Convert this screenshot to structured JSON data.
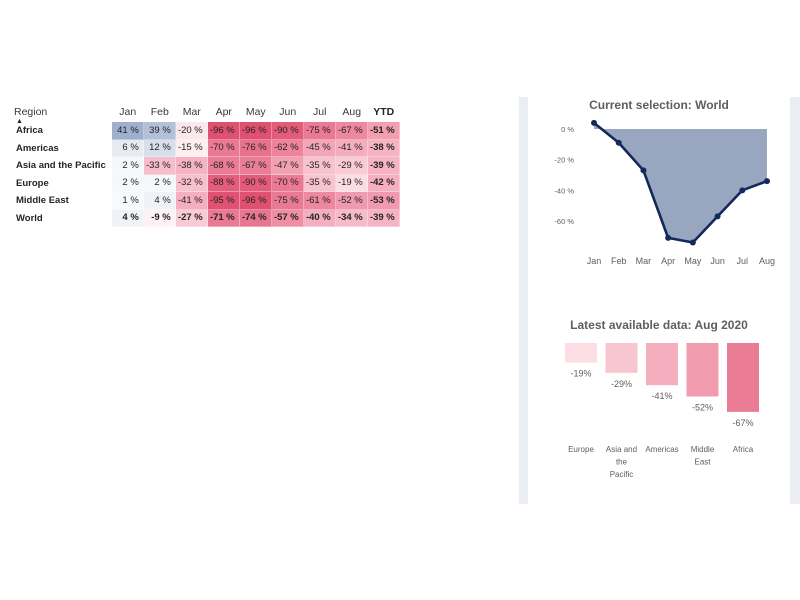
{
  "table": {
    "headers": {
      "region": "Region",
      "months": [
        "Jan",
        "Feb",
        "Mar",
        "Apr",
        "May",
        "Jun",
        "Jul",
        "Aug"
      ],
      "ytd": "YTD"
    },
    "rows": [
      {
        "region": "Africa",
        "values": [
          "41 %",
          "39 %",
          "-20 %",
          "-96 %",
          "-96 %",
          "-90 %",
          "-75 %",
          "-67 %"
        ],
        "ytd": "-51 %",
        "colors": [
          "#9fb0cc",
          "#b3c0d7",
          "#fce7ea",
          "#e05070",
          "#e05070",
          "#e45c7a",
          "#ea7a93",
          "#ee889e"
        ],
        "ytd_color": "#f29fb2"
      },
      {
        "region": "Americas",
        "values": [
          "6 %",
          "12 %",
          "-15 %",
          "-70 %",
          "-76 %",
          "-62 %",
          "-45 %",
          "-41 %"
        ],
        "ytd": "-38 %",
        "colors": [
          "#e6ebf2",
          "#d8dfea",
          "#fdeef1",
          "#ea7a93",
          "#e8728c",
          "#ed849c",
          "#f3a6b7",
          "#f4adbd"
        ],
        "ytd_color": "#f6b4c3"
      },
      {
        "region": "Asia and the Pacific",
        "values": [
          "2 %",
          "-33 %",
          "-38 %",
          "-68 %",
          "-67 %",
          "-47 %",
          "-35 %",
          "-29 %"
        ],
        "ytd": "-39 %",
        "colors": [
          "#f6f7fa",
          "#f7bdcb",
          "#f6b4c3",
          "#eb7c95",
          "#eb7e97",
          "#f2a1b3",
          "#f8c2ce",
          "#f9cbd5"
        ],
        "ytd_color": "#f6b4c3"
      },
      {
        "region": "Europe",
        "values": [
          "2 %",
          "2 %",
          "-32 %",
          "-88 %",
          "-90 %",
          "-70 %",
          "-35 %",
          "-19 %"
        ],
        "ytd": "-42 %",
        "colors": [
          "#f6f7fa",
          "#f6f7fa",
          "#f8c0cc",
          "#e45e7b",
          "#e45c7a",
          "#ea7a93",
          "#f8c2ce",
          "#fbdee4"
        ],
        "ytd_color": "#f5afbf"
      },
      {
        "region": "Middle East",
        "values": [
          "1 %",
          "4 %",
          "-41 %",
          "-95 %",
          "-96 %",
          "-75 %",
          "-61 %",
          "-52 %"
        ],
        "ytd": "-53 %",
        "colors": [
          "#f8f9fb",
          "#eff2f7",
          "#f4aebe",
          "#e15272",
          "#e05070",
          "#ea7a93",
          "#ee889f",
          "#f09ab0"
        ],
        "ytd_color": "#f09ab0"
      },
      {
        "region": "World",
        "values": [
          "4 %",
          "-9 %",
          "-27 %",
          "-71 %",
          "-74 %",
          "-57 %",
          "-40 %",
          "-34 %"
        ],
        "ytd": "-39 %",
        "colors": [
          "#eff2f7",
          "#fdf1f4",
          "#f9cbd5",
          "#ea7a93",
          "#e97690",
          "#ef8ea4",
          "#f5b0c0",
          "#f7bac8"
        ],
        "ytd_color": "#f6b4c3"
      }
    ]
  },
  "line_panel": {
    "title": "Current selection: World"
  },
  "bar_panel": {
    "title": "Latest available data: Aug 2020"
  },
  "chart_data": [
    {
      "type": "area",
      "title": "Current selection: World",
      "x": [
        "Jan",
        "Feb",
        "Mar",
        "Apr",
        "May",
        "Jun",
        "Jul",
        "Aug"
      ],
      "series": [
        {
          "values": [
            4,
            -9,
            -27,
            -71,
            -74,
            -57,
            -40,
            -34
          ]
        }
      ],
      "yticks": [
        "0 %",
        "-20 %",
        "-40 %",
        "-60 %"
      ],
      "ytick_values": [
        0,
        -20,
        -40,
        -60
      ],
      "ylim": [
        -75,
        0
      ],
      "fill_color": "#98a6bf",
      "line_color": "#13295a"
    },
    {
      "type": "bar",
      "title": "Latest available data: Aug 2020",
      "categories": [
        "Europe",
        "Asia and the Pacific",
        "Americas",
        "Middle East",
        "Africa"
      ],
      "category_lines": [
        [
          "Europe"
        ],
        [
          "Asia and",
          "the",
          "Pacific"
        ],
        [
          "Americas"
        ],
        [
          "Middle",
          "East"
        ],
        [
          "Africa"
        ]
      ],
      "values": [
        -19,
        -29,
        -41,
        -52,
        -67
      ],
      "labels": [
        "-19%",
        "-29%",
        "-41%",
        "-52%",
        "-67%"
      ],
      "colors": [
        "#fbdde3",
        "#f8c6d1",
        "#f4aebe",
        "#f09bae",
        "#ea7d93"
      ],
      "ylim": [
        -70,
        0
      ]
    }
  ]
}
